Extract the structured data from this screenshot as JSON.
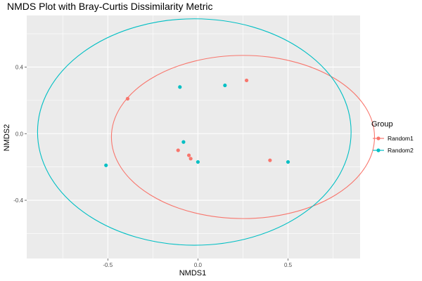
{
  "chart_data": {
    "type": "scatter",
    "title": "NMDS Plot with Bray-Curtis Dissimilarity Metric",
    "xlabel": "NMDS1",
    "ylabel": "NMDS2",
    "xlim": [
      -0.95,
      0.9
    ],
    "ylim": [
      -0.75,
      0.71
    ],
    "x_ticks": [
      -0.5,
      0.0,
      0.5
    ],
    "y_ticks": [
      -0.4,
      0.0,
      0.4
    ],
    "x_tick_labels": [
      "-0.5",
      "0.0",
      "0.5"
    ],
    "y_tick_labels": [
      "-0.4",
      "0.0",
      "0.4"
    ],
    "grid": true,
    "legend": {
      "title": "Group",
      "placement": "right"
    },
    "series": [
      {
        "name": "Random1",
        "color": "#F8766D",
        "points": [
          {
            "x": -0.39,
            "y": 0.21
          },
          {
            "x": 0.27,
            "y": 0.32
          },
          {
            "x": -0.11,
            "y": -0.1
          },
          {
            "x": -0.05,
            "y": -0.13
          },
          {
            "x": -0.04,
            "y": -0.15
          },
          {
            "x": 0.4,
            "y": -0.16
          }
        ],
        "ellipse": {
          "cx": 0.25,
          "cy": -0.02,
          "rx": 0.73,
          "ry": 0.49
        }
      },
      {
        "name": "Random2",
        "color": "#00BFC4",
        "points": [
          {
            "x": -0.1,
            "y": 0.28
          },
          {
            "x": 0.15,
            "y": 0.29
          },
          {
            "x": -0.08,
            "y": -0.05
          },
          {
            "x": 0.0,
            "y": -0.17
          },
          {
            "x": -0.51,
            "y": -0.19
          },
          {
            "x": 0.5,
            "y": -0.17
          }
        ],
        "ellipse": {
          "cx": -0.02,
          "cy": 0.01,
          "rx": 0.87,
          "ry": 0.68
        }
      }
    ]
  }
}
